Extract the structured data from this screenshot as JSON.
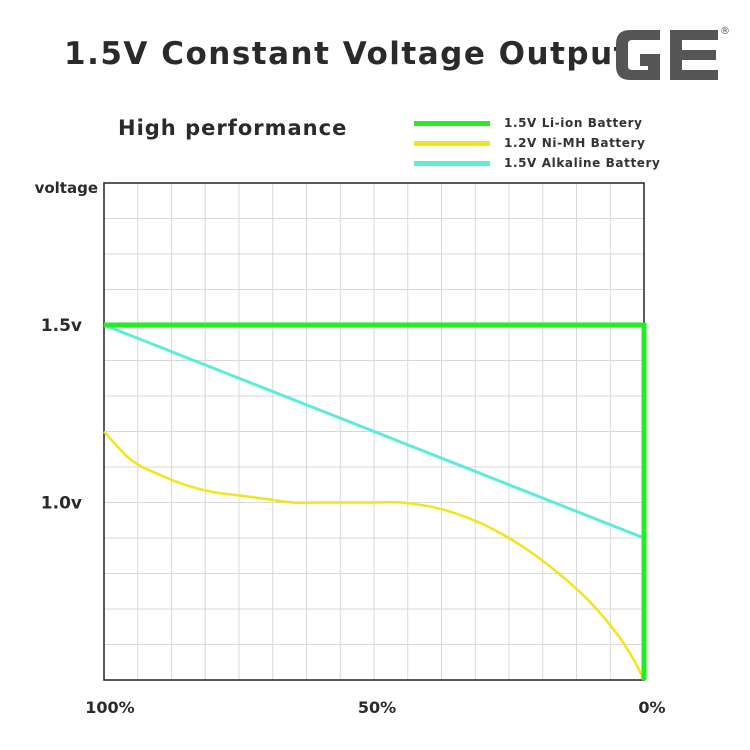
{
  "header": {
    "title": "1.5V Constant Voltage Output",
    "logo_text": "GE",
    "logo_mark": "®"
  },
  "chart_data": {
    "type": "line",
    "title": "High performance",
    "ylabel": "voltage",
    "xlabel": "",
    "x_ticks": [
      "100%",
      "50%",
      "0%"
    ],
    "y_ticks": [
      "1.5v",
      "1.0v"
    ],
    "xlim": [
      100,
      0
    ],
    "ylim": [
      0.5,
      1.9
    ],
    "grid": true,
    "legend": "top-right",
    "series": [
      {
        "name": "1.5V Li-ion Battery",
        "color": "#22ee22",
        "x": [
          100,
          0,
          0
        ],
        "y": [
          1.5,
          1.5,
          0.5
        ]
      },
      {
        "name": "1.2V Ni-MH Battery",
        "color": "#f4e41c",
        "x": [
          100,
          95,
          90,
          85,
          80,
          75,
          70,
          65,
          60,
          55,
          50,
          45,
          40,
          35,
          30,
          25,
          20,
          15,
          10,
          5,
          2,
          0
        ],
        "y": [
          1.2,
          1.12,
          1.08,
          1.05,
          1.03,
          1.02,
          1.01,
          1.0,
          1.0,
          1.0,
          1.0,
          1.0,
          0.99,
          0.97,
          0.94,
          0.9,
          0.85,
          0.79,
          0.72,
          0.63,
          0.56,
          0.5
        ]
      },
      {
        "name": "1.5V Alkaline Battery",
        "color": "#5eecd9",
        "x": [
          100,
          0
        ],
        "y": [
          1.5,
          0.9
        ]
      }
    ]
  }
}
